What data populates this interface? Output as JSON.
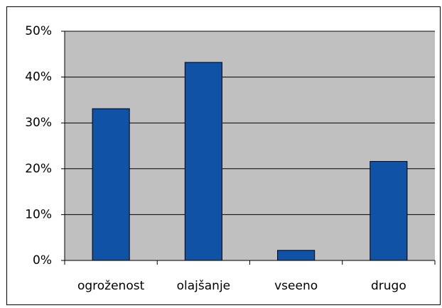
{
  "chart_data": {
    "type": "bar",
    "categories": [
      "ogroženost",
      "olajšanje",
      "vseeno",
      "drugo"
    ],
    "values": [
      33.1,
      43.2,
      2.2,
      21.6
    ],
    "color": "#0f52a6",
    "ylim": [
      0,
      50
    ],
    "yticks": [
      {
        "value": 0,
        "label": "0%"
      },
      {
        "value": 10,
        "label": "10%"
      },
      {
        "value": 20,
        "label": "20%"
      },
      {
        "value": 30,
        "label": "30%"
      },
      {
        "value": 40,
        "label": "40%"
      },
      {
        "value": 50,
        "label": "50%"
      }
    ],
    "grid": true
  }
}
